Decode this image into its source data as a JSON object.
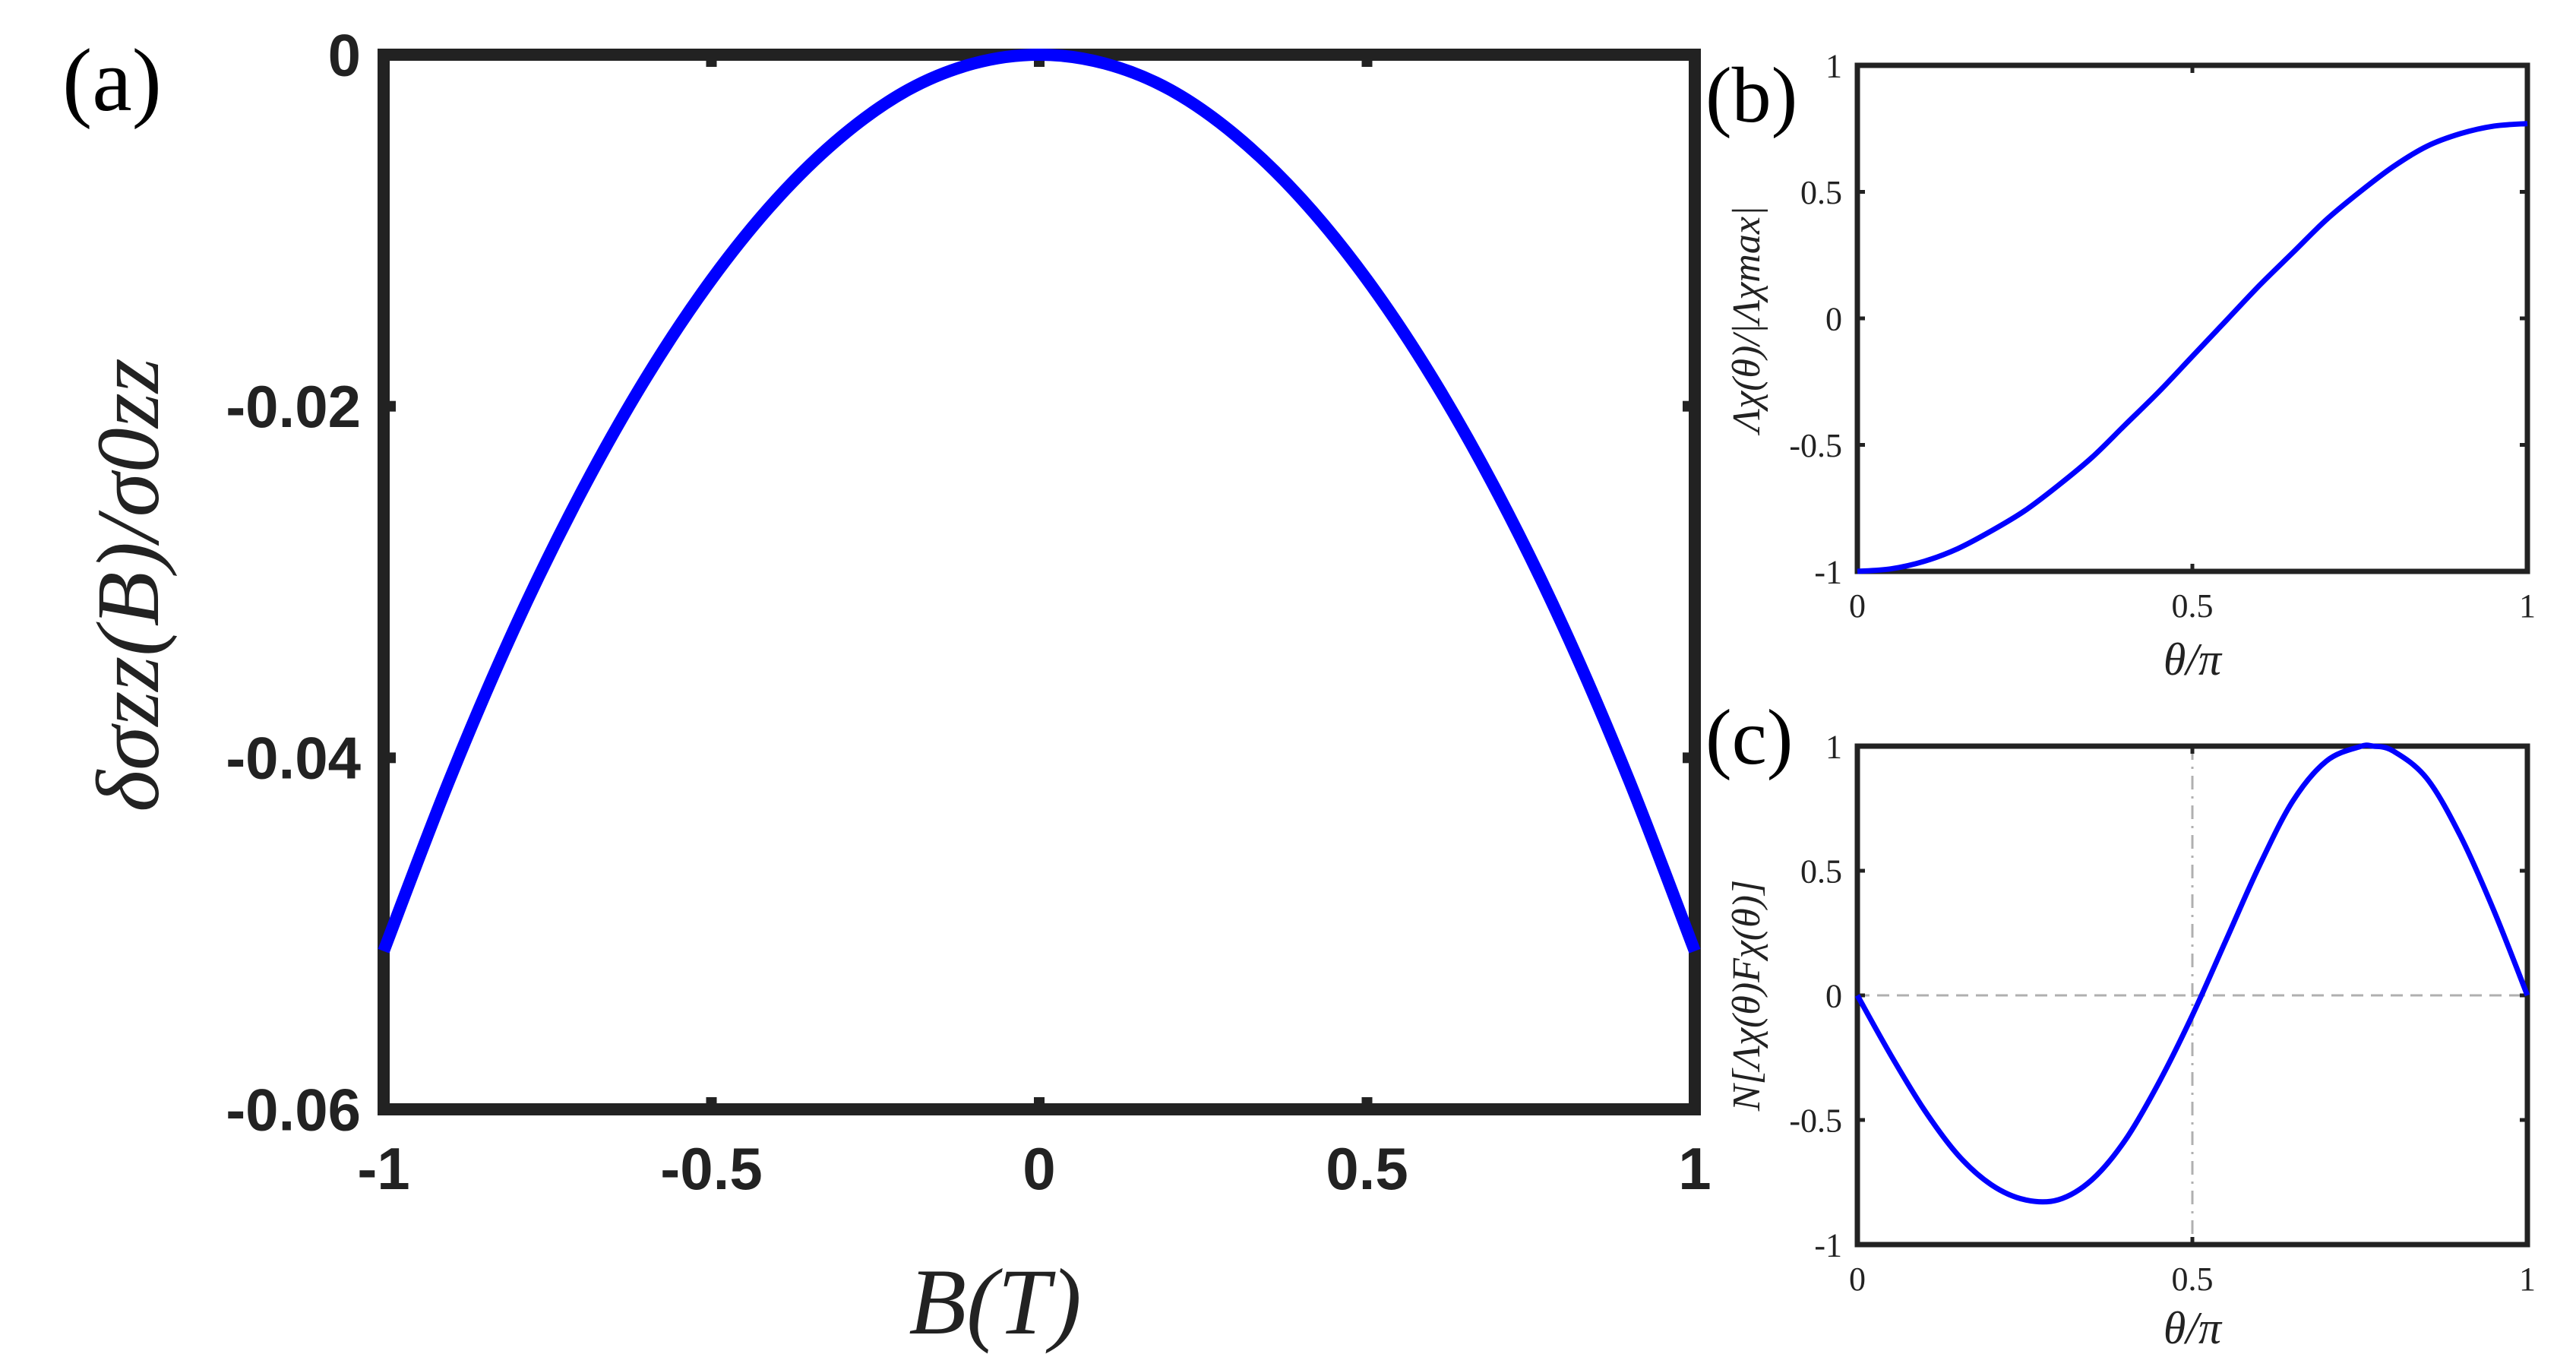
{
  "chart_data": [
    {
      "panel": "(a)",
      "type": "line",
      "xlabel": "B(T)",
      "ylabel": "δσzz(B)/σ0zz",
      "xlim": [
        -1,
        1
      ],
      "ylim": [
        -0.06,
        0
      ],
      "xticks": [
        -1,
        -0.5,
        0,
        0.5,
        1
      ],
      "xtick_labels": [
        "-1",
        "-0.5",
        "0",
        "0.5",
        "1"
      ],
      "yticks": [
        0,
        -0.02,
        -0.04,
        -0.06
      ],
      "ytick_labels": [
        "0",
        "-0.02",
        "-0.04",
        "-0.06"
      ],
      "grid": false,
      "series": [
        {
          "color": "#0000ff",
          "x": [
            -1,
            -0.9,
            -0.8,
            -0.7,
            -0.6,
            -0.5,
            -0.4,
            -0.3,
            -0.2,
            -0.1,
            0,
            0.1,
            0.2,
            0.3,
            0.4,
            0.5,
            0.6,
            0.7,
            0.8,
            0.9,
            1
          ],
          "y": [
            -0.051,
            -0.0413,
            -0.0326,
            -0.025,
            -0.0184,
            -0.0128,
            -0.0082,
            -0.0046,
            -0.002,
            -0.0005,
            0,
            -0.0005,
            -0.002,
            -0.0046,
            -0.0082,
            -0.0128,
            -0.0184,
            -0.025,
            -0.0326,
            -0.0413,
            -0.051
          ]
        }
      ]
    },
    {
      "panel": "(b)",
      "type": "line",
      "xlabel": "θ/π",
      "ylabel": "Λχ(θ)/|Λχmax|",
      "xlim": [
        0,
        1
      ],
      "ylim": [
        -1,
        1
      ],
      "xticks": [
        0,
        0.5,
        1
      ],
      "xtick_labels": [
        "0",
        "0.5",
        "1"
      ],
      "yticks": [
        1,
        0.5,
        0,
        -0.5,
        -1
      ],
      "ytick_labels": [
        "1",
        "0.5",
        "0",
        "-0.5",
        "-1"
      ],
      "grid": false,
      "series": [
        {
          "color": "#0000ff",
          "x": [
            0,
            0.05,
            0.1,
            0.15,
            0.2,
            0.25,
            0.3,
            0.35,
            0.4,
            0.45,
            0.5,
            0.55,
            0.6,
            0.65,
            0.7,
            0.75,
            0.8,
            0.85,
            0.9,
            0.95,
            1
          ],
          "y": [
            -1,
            -0.99,
            -0.96,
            -0.91,
            -0.84,
            -0.76,
            -0.66,
            -0.55,
            -0.42,
            -0.29,
            -0.15,
            -0.01,
            0.13,
            0.26,
            0.39,
            0.5,
            0.6,
            0.68,
            0.73,
            0.76,
            0.77
          ]
        }
      ]
    },
    {
      "panel": "(c)",
      "type": "line",
      "xlabel": "θ/π",
      "ylabel": "N[Λχ(θ)Fχ(θ)]",
      "xlim": [
        0,
        1
      ],
      "ylim": [
        -1,
        1
      ],
      "xticks": [
        0,
        0.5,
        1
      ],
      "xtick_labels": [
        "0",
        "0.5",
        "1"
      ],
      "yticks": [
        1,
        0.5,
        0,
        -0.5,
        -1
      ],
      "ytick_labels": [
        "1",
        "0.5",
        "0",
        "-0.5",
        "-1"
      ],
      "grid": false,
      "reference_lines": {
        "x": 0.5,
        "y": 0
      },
      "series": [
        {
          "color": "#0000ff",
          "x": [
            0,
            0.05,
            0.1,
            0.15,
            0.2,
            0.25,
            0.3,
            0.35,
            0.4,
            0.45,
            0.5,
            0.55,
            0.6,
            0.65,
            0.7,
            0.75,
            0.77,
            0.8,
            0.85,
            0.9,
            0.95,
            1
          ],
          "y": [
            0,
            -0.24,
            -0.46,
            -0.64,
            -0.76,
            -0.82,
            -0.82,
            -0.74,
            -0.58,
            -0.35,
            -0.08,
            0.22,
            0.52,
            0.78,
            0.94,
            0.998,
            1,
            0.98,
            0.87,
            0.64,
            0.34,
            0
          ]
        }
      ]
    }
  ]
}
